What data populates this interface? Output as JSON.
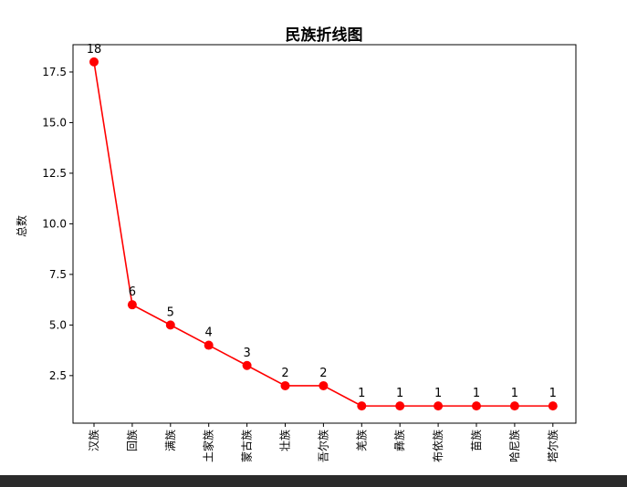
{
  "chart_data": {
    "type": "line",
    "title": "民族折线图",
    "xlabel": "",
    "ylabel": "总数",
    "categories": [
      "汉族",
      "回族",
      "满族",
      "土家族",
      "蒙古族",
      "壮族",
      "吾尔族",
      "羌族",
      "彝族",
      "布依族",
      "苗族",
      "哈尼族",
      "塔尔族"
    ],
    "values": [
      18,
      6,
      5,
      4,
      3,
      2,
      2,
      1,
      1,
      1,
      1,
      1,
      1
    ],
    "yticks": [
      "2.5",
      "5.0",
      "7.5",
      "10.0",
      "12.5",
      "15.0",
      "17.5"
    ],
    "ylim": [
      0.15,
      18.85
    ],
    "grid": false,
    "legend": "none",
    "line_color": "#ff0000",
    "marker_color": "#ff0000"
  }
}
